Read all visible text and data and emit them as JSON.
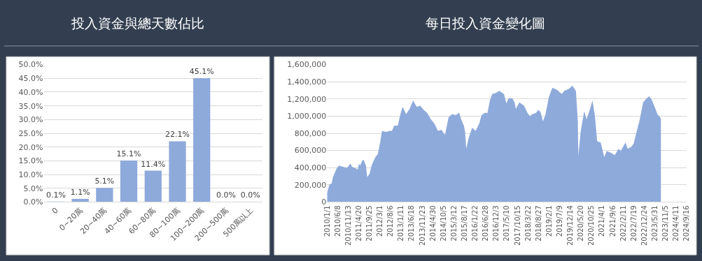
{
  "chart_data": [
    {
      "type": "bar",
      "title": "投入資金與總天數佔比",
      "categories": [
        "0",
        "0~20萬",
        "20~40萬",
        "40~60萬",
        "60~80萬",
        "80~100萬",
        "100~200萬",
        "200~500萬",
        "500萬以上"
      ],
      "values": [
        0.1,
        1.1,
        5.1,
        15.1,
        11.4,
        22.1,
        45.1,
        0.0,
        0.0
      ],
      "value_labels": [
        "0.1%",
        "1.1%",
        "5.1%",
        "15.1%",
        "11.4%",
        "22.1%",
        "45.1%",
        "0.0%",
        "0.0%"
      ],
      "color": "#8eaadb",
      "ylim": [
        0,
        50
      ],
      "yticks": [
        {
          "value": 0,
          "label": "0.0%"
        },
        {
          "value": 5,
          "label": "5.0%"
        },
        {
          "value": 10,
          "label": "10.0%"
        },
        {
          "value": 15,
          "label": "15.0%"
        },
        {
          "value": 20,
          "label": "20.0%"
        },
        {
          "value": 25,
          "label": "25.0%"
        },
        {
          "value": 30,
          "label": "30.0%"
        },
        {
          "value": 35,
          "label": "35.0%"
        },
        {
          "value": 40,
          "label": "40.0%"
        },
        {
          "value": 45,
          "label": "45.0%"
        },
        {
          "value": 50,
          "label": "50.0%"
        }
      ],
      "grid": "y"
    },
    {
      "type": "area",
      "title": "每日投入資金變化圖",
      "color": "#8eaadb",
      "x": [
        "2010-01-01",
        "2010-02-05",
        "2010-03-12",
        "2010-03-30",
        "2010-05-22",
        "2010-06-26",
        "2010-09-22",
        "2010-10-28",
        "2010-12-19",
        "2011-01-06",
        "2011-03-17",
        "2011-04-04",
        "2011-04-22",
        "2011-05-09",
        "2011-06-14",
        "2011-07-01",
        "2011-08-05",
        "2011-08-23",
        "2011-09-27",
        "2011-11-02",
        "2011-12-24",
        "2012-01-29",
        "2012-03-04",
        "2012-04-01",
        "2012-05-31",
        "2012-07-23",
        "2012-08-27",
        "2012-10-01",
        "2012-11-23",
        "2012-12-28",
        "2013-02-02",
        "2013-03-27",
        "2013-05-18",
        "2013-07-10",
        "2013-09-01",
        "2013-10-24",
        "2013-12-16",
        "2014-02-07",
        "2014-04-01",
        "2014-05-23",
        "2014-07-15",
        "2014-09-06",
        "2014-10-29",
        "2014-12-21",
        "2015-02-12",
        "2015-04-06",
        "2015-05-28",
        "2015-07-03",
        "2015-08-07",
        "2015-08-25",
        "2015-09-11",
        "2015-10-16",
        "2015-12-08",
        "2016-01-30",
        "2016-03-23",
        "2016-04-27",
        "2016-06-19",
        "2016-07-24",
        "2016-08-29",
        "2016-10-03",
        "2016-11-25",
        "2017-01-17",
        "2017-03-28",
        "2017-05-02",
        "2017-06-06",
        "2017-07-29",
        "2017-09-03",
        "2017-09-20",
        "2017-11-12",
        "2018-01-22",
        "2018-03-15",
        "2018-04-19",
        "2018-05-25",
        "2018-07-17",
        "2018-08-21",
        "2018-09-25",
        "2018-10-30",
        "2018-12-05",
        "2019-01-27",
        "2019-03-20",
        "2019-05-30",
        "2019-08-08",
        "2019-09-13",
        "2019-11-22",
        "2020-01-14",
        "2020-03-06",
        "2020-04-04",
        "2020-04-11",
        "2020-05-16",
        "2020-07-08",
        "2020-08-12",
        "2020-10-04",
        "2020-11-08",
        "2020-12-14",
        "2021-01-18",
        "2021-03-12",
        "2021-05-04",
        "2021-06-08",
        "2021-08-17",
        "2021-10-09",
        "2021-12-01",
        "2022-01-05",
        "2022-03-16",
        "2022-04-20",
        "2022-06-12",
        "2022-07-17",
        "2022-08-21",
        "2022-10-13",
        "2022-12-05",
        "2023-01-28",
        "2023-03-04",
        "2023-04-09",
        "2023-05-31",
        "2023-07-06",
        "2023-08-28"
      ],
      "values": [
        105000,
        203000,
        216000,
        289000,
        387000,
        424000,
        404000,
        399000,
        448000,
        412000,
        387000,
        375000,
        448000,
        424000,
        485000,
        490000,
        424000,
        289000,
        326000,
        436000,
        522000,
        559000,
        693000,
        828000,
        816000,
        828000,
        828000,
        889000,
        889000,
        1012000,
        1110000,
        1024000,
        1085000,
        1183000,
        1110000,
        1122000,
        1073000,
        1036000,
        963000,
        914000,
        828000,
        840000,
        779000,
        987000,
        1024000,
        1012000,
        1041000,
        951000,
        889000,
        816000,
        620000,
        742000,
        865000,
        828000,
        914000,
        1012000,
        1041000,
        1036000,
        1183000,
        1257000,
        1269000,
        1294000,
        1257000,
        1147000,
        1208000,
        1208000,
        1159000,
        1085000,
        1159000,
        1122000,
        1036000,
        1000000,
        1024000,
        1036000,
        1073000,
        1049000,
        938000,
        1012000,
        1220000,
        1330000,
        1306000,
        1257000,
        1294000,
        1318000,
        1355000,
        1294000,
        938000,
        534000,
        816000,
        1061000,
        963000,
        1085000,
        1183000,
        1012000,
        706000,
        693000,
        522000,
        595000,
        571000,
        546000,
        620000,
        595000,
        693000,
        620000,
        644000,
        681000,
        791000,
        951000,
        1159000,
        1208000,
        1232000,
        1196000,
        1098000,
        1024000,
        975000
      ],
      "xlim": [
        "2010-01-01",
        "2024-09-16"
      ],
      "xticks": [
        {
          "value": "2010-01-01",
          "label": "2010/1/1"
        },
        {
          "value": "2010-06-08",
          "label": "2010/6/8"
        },
        {
          "value": "2010-11-13",
          "label": "2010/11/13"
        },
        {
          "value": "2011-04-20",
          "label": "2011/4/20"
        },
        {
          "value": "2011-09-25",
          "label": "2011/9/25"
        },
        {
          "value": "2012-03-01",
          "label": "2012/3/1"
        },
        {
          "value": "2012-08-06",
          "label": "2012/8/6"
        },
        {
          "value": "2013-01-11",
          "label": "2013/1/11"
        },
        {
          "value": "2013-06-18",
          "label": "2013/6/18"
        },
        {
          "value": "2013-11-23",
          "label": "2013/11/23"
        },
        {
          "value": "2014-04-30",
          "label": "2014/4/30"
        },
        {
          "value": "2014-10-05",
          "label": "2014/10/5"
        },
        {
          "value": "2015-03-12",
          "label": "2015/3/12"
        },
        {
          "value": "2015-08-17",
          "label": "2015/8/17"
        },
        {
          "value": "2016-01-22",
          "label": "2016/1/22"
        },
        {
          "value": "2016-06-28",
          "label": "2016/6/28"
        },
        {
          "value": "2016-12-03",
          "label": "2016/12/3"
        },
        {
          "value": "2017-05-10",
          "label": "2017/5/10"
        },
        {
          "value": "2017-10-15",
          "label": "2017/10/15"
        },
        {
          "value": "2018-03-22",
          "label": "2018/3/22"
        },
        {
          "value": "2018-08-27",
          "label": "2018/8/27"
        },
        {
          "value": "2019-02-01",
          "label": "2019/2/1"
        },
        {
          "value": "2019-07-09",
          "label": "2019/7/9"
        },
        {
          "value": "2019-12-14",
          "label": "2019/12/14"
        },
        {
          "value": "2020-05-20",
          "label": "2020/5/20"
        },
        {
          "value": "2020-10-25",
          "label": "2020/10/25"
        },
        {
          "value": "2021-04-01",
          "label": "2021/4/1"
        },
        {
          "value": "2021-09-06",
          "label": "2021/9/6"
        },
        {
          "value": "2022-02-11",
          "label": "2022/2/11"
        },
        {
          "value": "2022-07-19",
          "label": "2022/7/19"
        },
        {
          "value": "2022-12-24",
          "label": "2022/12/24"
        },
        {
          "value": "2023-05-31",
          "label": "2023/5/31"
        },
        {
          "value": "2023-11-05",
          "label": "2023/11/5"
        },
        {
          "value": "2024-04-11",
          "label": "2024/4/11"
        },
        {
          "value": "2024-09-16",
          "label": "2024/9/16"
        }
      ],
      "ylim": [
        0,
        1600000
      ],
      "yticks": [
        0,
        {
          "value": 200000,
          "label": "200,000"
        },
        {
          "value": 400000,
          "label": "400,000"
        },
        {
          "value": 600000,
          "label": "600,000"
        },
        {
          "value": 800000,
          "label": "800,000"
        },
        {
          "value": 1000000,
          "label": "1,000,000"
        },
        {
          "value": 1200000,
          "label": "1,200,000"
        },
        {
          "value": 1400000,
          "label": "1,400,000"
        },
        {
          "value": 1600000,
          "label": "1,600,000"
        }
      ],
      "grid": "y"
    }
  ]
}
